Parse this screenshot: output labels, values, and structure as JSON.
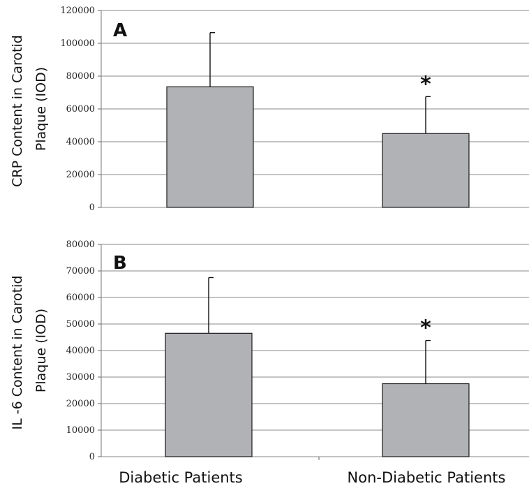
{
  "chart_data": [
    {
      "type": "bar",
      "panel_label": "A",
      "categories": [
        "Diabetic Patients",
        "Non-Diabetic Patients"
      ],
      "values": [
        73500,
        45000
      ],
      "error_upper": [
        106500,
        67500
      ],
      "significance": [
        "",
        "*"
      ],
      "ylabel_lines": [
        "CRP Content in Carotid",
        "Plaque (IOD)"
      ],
      "ylim": [
        0,
        120000
      ],
      "yticks": [
        "0",
        "20000",
        "40000",
        "60000",
        "80000",
        "100000",
        "120000"
      ],
      "grid": true,
      "bar_color": "#b1b2b6"
    },
    {
      "type": "bar",
      "panel_label": "B",
      "categories": [
        "Diabetic Patients",
        "Non-Diabetic Patients"
      ],
      "values": [
        46500,
        27500
      ],
      "error_upper": [
        67500,
        43800
      ],
      "significance": [
        "",
        "*"
      ],
      "ylabel_lines": [
        "IL -6 Content in Carotid",
        "Plaque (IOD)"
      ],
      "ylim": [
        0,
        80000
      ],
      "yticks": [
        "0",
        "10000",
        "20000",
        "30000",
        "40000",
        "50000",
        "60000",
        "70000",
        "80000"
      ],
      "grid": true,
      "bar_color": "#b1b2b6"
    }
  ],
  "x_category_labels": [
    "Diabetic Patients",
    "Non-Diabetic Patients"
  ]
}
